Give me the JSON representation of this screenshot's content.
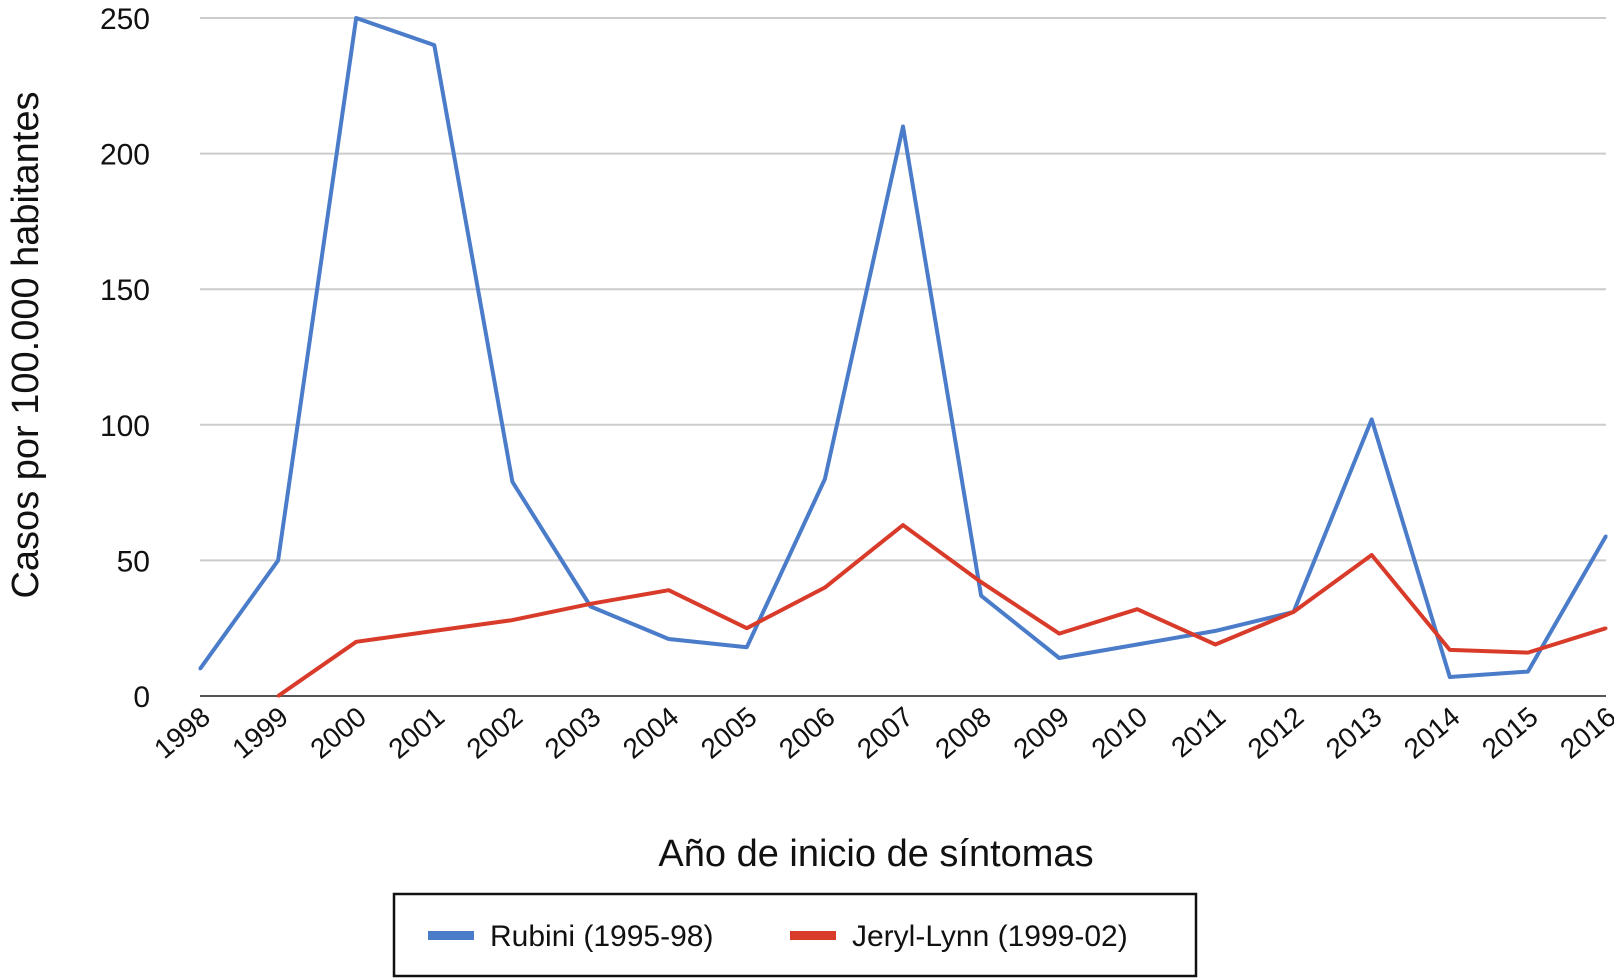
{
  "chart_data": {
    "type": "line",
    "title": "",
    "xlabel": "Año de inicio de síntomas",
    "ylabel": "Casos por 100.000 habitantes",
    "categories": [
      "1998",
      "1999",
      "2000",
      "2001",
      "2002",
      "2003",
      "2004",
      "2005",
      "2006",
      "2007",
      "2008",
      "2009",
      "2010",
      "2011",
      "2012",
      "2013",
      "2014",
      "2015",
      "2016"
    ],
    "ylim": [
      0,
      250
    ],
    "yticks": [
      0,
      50,
      100,
      150,
      200,
      250
    ],
    "grid": true,
    "legend_position": "bottom",
    "series": [
      {
        "name": "Rubini (1995-98)",
        "color": "#4a7cc9",
        "values": [
          10,
          50,
          250,
          240,
          79,
          33,
          21,
          18,
          80,
          210,
          37,
          14,
          19,
          24,
          31,
          102,
          7,
          9,
          59
        ]
      },
      {
        "name": "Jeryl-Lynn (1999-02)",
        "color": "#d93b2b",
        "values": [
          null,
          0,
          20,
          24,
          28,
          34,
          39,
          25,
          40,
          63,
          42,
          23,
          32,
          19,
          31,
          52,
          17,
          16,
          25
        ]
      }
    ]
  }
}
